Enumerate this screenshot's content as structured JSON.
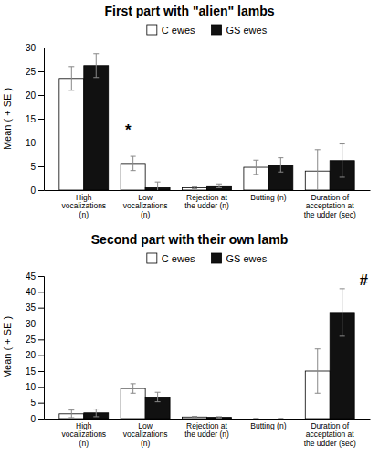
{
  "chart_data": [
    {
      "type": "bar",
      "title": "First part with \"alien\" lambs",
      "y_label": "Mean ( + SE )",
      "categories": [
        "High\nvocalizations\n(n)",
        "Low\nvocalizations\n(n)",
        "Rejection at\nthe udder (n)",
        "Butting (n)",
        "Duration of\nacceptation at\nthe udder (sec)"
      ],
      "series": [
        {
          "name": "C ewes",
          "color": "#ffffff",
          "values": [
            23.5,
            5.6,
            0.5,
            4.8,
            4.0
          ],
          "errors": [
            2.5,
            1.5,
            0.2,
            1.5,
            4.5
          ]
        },
        {
          "name": "GS ewes",
          "color": "#111111",
          "values": [
            26.2,
            0.5,
            0.9,
            5.3,
            6.2
          ],
          "errors": [
            2.5,
            1.2,
            0.4,
            1.5,
            3.5
          ]
        }
      ],
      "ylim": [
        0,
        30
      ],
      "yticks": [
        0,
        5,
        10,
        15,
        20,
        25,
        30
      ],
      "annotations": [
        {
          "text": "*",
          "x": 0.72,
          "y": 11.5
        }
      ],
      "legend": "top",
      "grid": false
    },
    {
      "type": "bar",
      "title": "Second part with their own lamb",
      "y_label": "Mean ( + SE )",
      "categories": [
        "High\nvocalizations\n(n)",
        "Low\nvocalizations\n(n)",
        "Rejection at\nthe udder (n)",
        "Butting (n)",
        "Duration of\nacceptation at\nthe udder (sec)"
      ],
      "series": [
        {
          "name": "C ewes",
          "color": "#ffffff",
          "values": [
            1.5,
            9.5,
            0.5,
            0.0,
            15.0
          ],
          "errors": [
            1.2,
            1.5,
            0.2,
            0.0,
            7.0
          ]
        },
        {
          "name": "GS ewes",
          "color": "#111111",
          "values": [
            1.8,
            6.8,
            0.4,
            0.0,
            33.5
          ],
          "errors": [
            1.2,
            1.5,
            0.2,
            0.0,
            7.5
          ]
        }
      ],
      "ylim": [
        0,
        45
      ],
      "yticks": [
        0,
        5,
        10,
        15,
        20,
        25,
        30,
        35,
        40,
        45
      ],
      "annotations": [
        {
          "text": "#",
          "x": 4.55,
          "y": 42.0
        }
      ],
      "legend": "top",
      "grid": false
    }
  ]
}
